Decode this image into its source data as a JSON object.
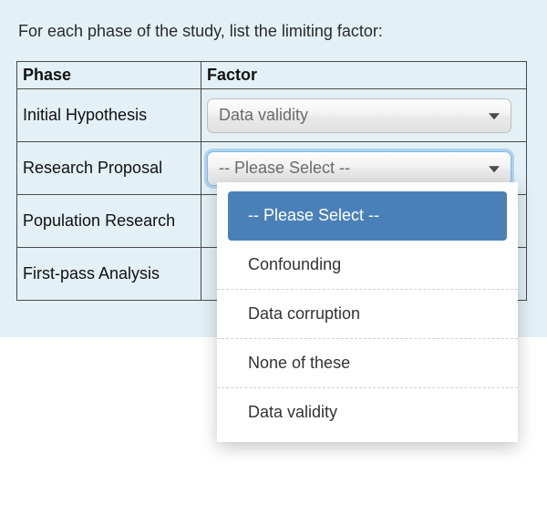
{
  "prompt": "For each phase of the study, list the limiting factor:",
  "table": {
    "headers": {
      "phase": "Phase",
      "factor": "Factor"
    },
    "rows": [
      {
        "phase": "Initial Hypothesis",
        "value": "Data validity",
        "open": false
      },
      {
        "phase": "Research Proposal",
        "value": "-- Please Select --",
        "open": true
      },
      {
        "phase": "Population Research",
        "value": "",
        "open": false
      },
      {
        "phase": "First-pass Analysis",
        "value": "",
        "open": false
      }
    ]
  },
  "dropdown": {
    "placeholder": "-- Please Select --",
    "options": [
      "-- Please Select --",
      "Confounding",
      "Data corruption",
      "None of these",
      "Data validity"
    ],
    "selected_index": 0
  },
  "style": {
    "page_bg": "#e3f0f5",
    "border_color": "#4a4a4a",
    "select_text_color": "#6b6b6b",
    "highlight_bg": "#4a80b8",
    "highlight_text": "#ffffff",
    "focus_ring": "rgba(120,180,230,0.5)"
  }
}
